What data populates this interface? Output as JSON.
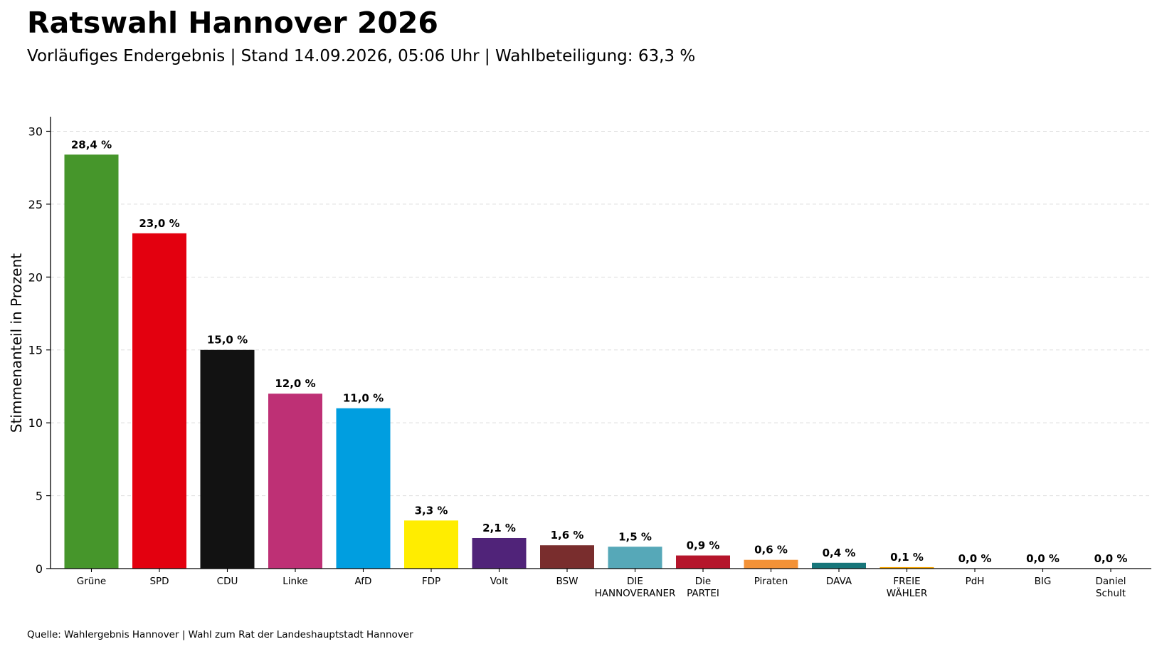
{
  "header": {
    "title": "Ratswahl Hannover 2026",
    "subtitle": "Vorläufiges Endergebnis | Stand 14.09.2026, 05:06 Uhr | Wahlbeteiligung: 63,3 %"
  },
  "footer": {
    "source": "Quelle: Wahlergebnis Hannover | Wahl zum Rat der Landeshauptstadt Hannover"
  },
  "chart_data": {
    "type": "bar",
    "title": "Ratswahl Hannover 2026",
    "subtitle": "Vorläufiges Endergebnis | Stand 14.09.2026, 05:06 Uhr | Wahlbeteiligung: 63,3 %",
    "xlabel": "",
    "ylabel": "Stimmenanteil in Prozent",
    "ylim": [
      0,
      31
    ],
    "yticks": [
      0,
      5,
      10,
      15,
      20,
      25,
      30
    ],
    "grid": "horizontal-dashed",
    "categories": [
      [
        "Grüne"
      ],
      [
        "SPD"
      ],
      [
        "CDU"
      ],
      [
        "Linke"
      ],
      [
        "AfD"
      ],
      [
        "FDP"
      ],
      [
        "Volt"
      ],
      [
        "BSW"
      ],
      [
        "DIE",
        "HANNOVERANER"
      ],
      [
        "Die",
        "PARTEI"
      ],
      [
        "Piraten"
      ],
      [
        "DAVA"
      ],
      [
        "FREIE",
        "WÄHLER"
      ],
      [
        "PdH"
      ],
      [
        "BIG"
      ],
      [
        "Daniel",
        "Schult"
      ]
    ],
    "values": [
      28.4,
      23.0,
      15.0,
      12.0,
      11.0,
      3.3,
      2.1,
      1.6,
      1.5,
      0.9,
      0.6,
      0.4,
      0.1,
      0.0,
      0.0,
      0.0
    ],
    "value_labels": [
      "28,4 %",
      "23,0 %",
      "15,0 %",
      "12,0 %",
      "11,0 %",
      "3,3 %",
      "2,1 %",
      "1,6 %",
      "1,5 %",
      "0,9 %",
      "0,6 %",
      "0,4 %",
      "0,1 %",
      "0,0 %",
      "0,0 %",
      "0,0 %"
    ],
    "colors": [
      "#46962b",
      "#e3000f",
      "#121212",
      "#be3075",
      "#009ee0",
      "#ffed00",
      "#502379",
      "#792d2d",
      "#56a8b8",
      "#b5152b",
      "#f39237",
      "#17767a",
      "#f7a600",
      "#1f2a5a",
      "#1c4e9c",
      "#888888"
    ]
  }
}
